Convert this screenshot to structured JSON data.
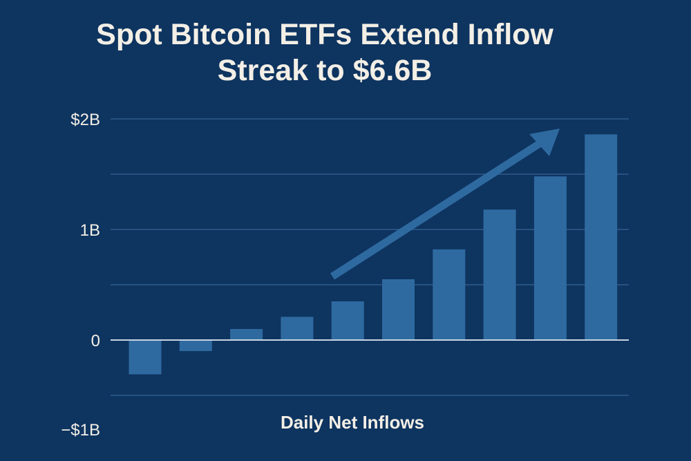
{
  "title_line1": "Spot Bitcoin ETFs Extend Inflow",
  "title_line2": "Streak to $6.6B",
  "chart_data": {
    "type": "bar",
    "title": "Spot Bitcoin ETFs Extend Inflow Streak to $6.6B",
    "xlabel": "Daily Net Inflows",
    "ylabel": "",
    "ylim": [
      -1,
      2
    ],
    "yticks": [
      {
        "value": 2,
        "label": "$2B"
      },
      {
        "value": 1,
        "label": "1B"
      },
      {
        "value": 0,
        "label": "0"
      },
      {
        "value": -1,
        "label": "−$1B"
      }
    ],
    "values": [
      -0.31,
      -0.1,
      0.1,
      0.21,
      0.35,
      0.55,
      0.82,
      1.18,
      1.48,
      1.86
    ],
    "grid": true,
    "trend_arrow": true,
    "colors": {
      "background": "#0e3460",
      "bar": "#2e6aa0",
      "grid": "#2f5d8c",
      "zero_line": "#c9d5e3",
      "text": "#f3efe6"
    }
  }
}
